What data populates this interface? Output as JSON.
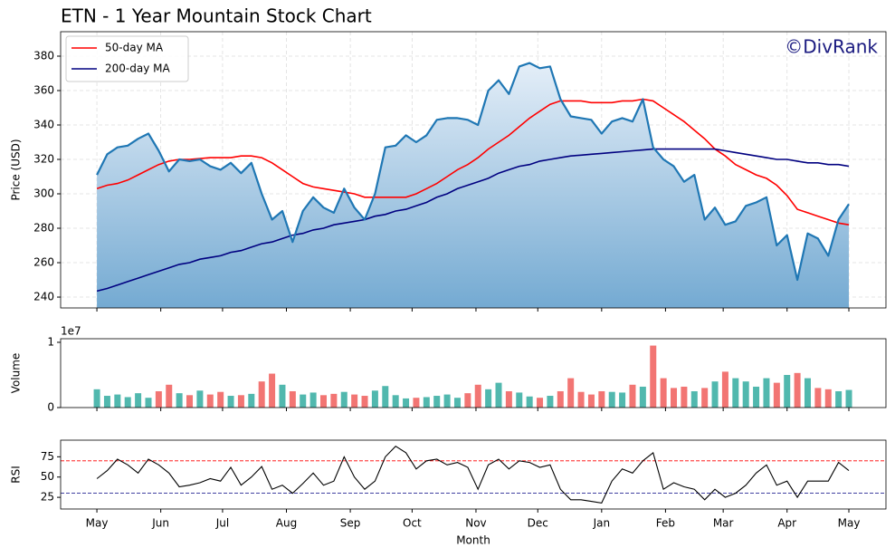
{
  "chart_data": [
    {
      "type": "area",
      "title": "ETN - 1 Year Mountain Stock Chart",
      "watermark": "©DivRank",
      "ylabel": "Price (USD)",
      "x": [
        0,
        5,
        10,
        15,
        20,
        25,
        30,
        35,
        40,
        45,
        50,
        55,
        60,
        65,
        70,
        75,
        80,
        85,
        90,
        95,
        100,
        105,
        110,
        115,
        120,
        125,
        130,
        135,
        140,
        145,
        150,
        155,
        160,
        165,
        170,
        175,
        180,
        185,
        190,
        195,
        200,
        205,
        210,
        215,
        220,
        225,
        230,
        235,
        240,
        245,
        250,
        255,
        260,
        265,
        270,
        275,
        280,
        285,
        290,
        295,
        300,
        305,
        310,
        315,
        320,
        325,
        330,
        335,
        340,
        345,
        350,
        355,
        360,
        365
      ],
      "values": [
        311,
        323,
        327,
        328,
        332,
        335,
        325,
        313,
        320,
        319,
        320,
        316,
        314,
        318,
        312,
        318,
        300,
        285,
        290,
        272,
        290,
        298,
        292,
        289,
        303,
        292,
        285,
        300,
        327,
        328,
        334,
        330,
        334,
        343,
        344,
        344,
        343,
        340,
        360,
        366,
        358,
        374,
        376,
        373,
        374,
        355,
        345,
        344,
        343,
        335,
        342,
        344,
        342,
        355,
        327,
        320,
        316,
        307,
        311,
        285,
        292,
        282,
        284,
        293,
        295,
        298,
        270,
        276,
        250,
        277,
        274,
        264,
        285,
        294
      ],
      "color": "#1f77b4",
      "series": [
        {
          "name": "50-day MA",
          "color": "#ff0000",
          "values": [
            303,
            305,
            306,
            308,
            311,
            314,
            317,
            319,
            320,
            320,
            320.5,
            321,
            321,
            321,
            322,
            322,
            321,
            318,
            314,
            310,
            306,
            304,
            303,
            302,
            301,
            300,
            298,
            298,
            298,
            298,
            298,
            300,
            303,
            306,
            310,
            314,
            317,
            321,
            326,
            330,
            334,
            339,
            344,
            348,
            352,
            354,
            354,
            354,
            353,
            353,
            353,
            354,
            354,
            355,
            354,
            350,
            346,
            342,
            337,
            332,
            326,
            322,
            317,
            314,
            311,
            309,
            305,
            299,
            291,
            289,
            287,
            285,
            283,
            282
          ]
        },
        {
          "name": "200-day MA",
          "color": "#000080",
          "values": [
            243.5,
            245,
            247,
            249,
            251,
            253,
            255,
            257,
            259,
            260,
            262,
            263,
            264,
            266,
            267,
            269,
            271,
            272,
            274,
            276,
            277,
            279,
            280,
            282,
            283,
            284,
            285,
            287,
            288,
            290,
            291,
            293,
            295,
            298,
            300,
            303,
            305,
            307,
            309,
            312,
            314,
            316,
            317,
            319,
            320,
            321,
            322,
            322.5,
            323,
            323.5,
            324,
            324.5,
            325,
            325.5,
            326,
            326,
            326,
            326,
            326,
            326,
            326,
            325,
            324,
            323,
            322,
            321,
            320,
            320,
            319,
            318,
            318,
            317,
            317,
            316
          ]
        }
      ],
      "xlim": [
        -17.6,
        383
      ],
      "ylim": [
        233.7,
        394.2
      ],
      "yticks": [
        240,
        260,
        280,
        300,
        320,
        340,
        360,
        380
      ],
      "grid": true,
      "legend": "upper left"
    },
    {
      "type": "bar",
      "ylabel": "Volume",
      "offset_label": "1e7",
      "x": [
        0,
        5,
        10,
        15,
        20,
        25,
        30,
        35,
        40,
        45,
        50,
        55,
        60,
        65,
        70,
        75,
        80,
        85,
        90,
        95,
        100,
        105,
        110,
        115,
        120,
        125,
        130,
        135,
        140,
        145,
        150,
        155,
        160,
        165,
        170,
        175,
        180,
        185,
        190,
        195,
        200,
        205,
        210,
        215,
        220,
        225,
        230,
        235,
        240,
        245,
        250,
        255,
        260,
        265,
        270,
        275,
        280,
        285,
        290,
        295,
        300,
        305,
        310,
        315,
        320,
        325,
        330,
        335,
        340,
        345,
        350,
        355,
        360,
        365
      ],
      "values": [
        2800000,
        1800000,
        2000000,
        1600000,
        2200000,
        1500000,
        2500000,
        3500000,
        2200000,
        1900000,
        2600000,
        2000000,
        2400000,
        1800000,
        1900000,
        2100000,
        4000000,
        5200000,
        3500000,
        2500000,
        2000000,
        2300000,
        1900000,
        2100000,
        2400000,
        2000000,
        1800000,
        2600000,
        3300000,
        1900000,
        1400000,
        1500000,
        1600000,
        1800000,
        2000000,
        1500000,
        2200000,
        3500000,
        2800000,
        3800000,
        2500000,
        2300000,
        1700000,
        1500000,
        1800000,
        2500000,
        4500000,
        2400000,
        2000000,
        2500000,
        2400000,
        2300000,
        3500000,
        3200000,
        9500000,
        4500000,
        3000000,
        3200000,
        2500000,
        3000000,
        4000000,
        5500000,
        4500000,
        4000000,
        3200000,
        4500000,
        3800000,
        5000000,
        5300000,
        4500000,
        3000000,
        2800000,
        2500000,
        2700000
      ],
      "up_color": "#26a69a",
      "down_color": "#ef5350",
      "xlim": [
        -17.6,
        383
      ],
      "ylim": [
        0,
        10550000
      ],
      "yticks": [
        0,
        {
          "value": 10000000,
          "label": "1"
        }
      ]
    },
    {
      "type": "line",
      "ylabel": "RSI",
      "xlabel": "Month",
      "x": [
        0,
        5,
        10,
        15,
        20,
        25,
        30,
        35,
        40,
        45,
        50,
        55,
        60,
        65,
        70,
        75,
        80,
        85,
        90,
        95,
        100,
        105,
        110,
        115,
        120,
        125,
        130,
        135,
        140,
        145,
        150,
        155,
        160,
        165,
        170,
        175,
        180,
        185,
        190,
        195,
        200,
        205,
        210,
        215,
        220,
        225,
        230,
        235,
        240,
        245,
        250,
        255,
        260,
        265,
        270,
        275,
        280,
        285,
        290,
        295,
        300,
        305,
        310,
        315,
        320,
        325,
        330,
        335,
        340,
        345,
        350,
        355,
        360,
        365
      ],
      "values": [
        48,
        58,
        72,
        65,
        55,
        72,
        65,
        55,
        38,
        40,
        43,
        48,
        45,
        62,
        40,
        50,
        63,
        35,
        40,
        30,
        42,
        55,
        40,
        45,
        75,
        50,
        35,
        45,
        75,
        88,
        80,
        60,
        70,
        72,
        65,
        68,
        62,
        35,
        65,
        72,
        60,
        70,
        68,
        62,
        65,
        35,
        22,
        22,
        20,
        18,
        45,
        60,
        55,
        70,
        80,
        35,
        43,
        38,
        35,
        22,
        35,
        25,
        30,
        40,
        55,
        65,
        40,
        45,
        25,
        45,
        45,
        45,
        68,
        58
      ],
      "color": "#000000",
      "hlines": [
        {
          "value": 70,
          "color": "#ff0000"
        },
        {
          "value": 30,
          "color": "#000080"
        }
      ],
      "xlim": [
        -17.6,
        383
      ],
      "ylim": [
        10.6,
        95.5
      ],
      "yticks": [
        25,
        50,
        75
      ],
      "xticks": [
        {
          "value": 0,
          "label": "May"
        },
        {
          "value": 31,
          "label": "Jun"
        },
        {
          "value": 61,
          "label": "Jul"
        },
        {
          "value": 92,
          "label": "Aug"
        },
        {
          "value": 123,
          "label": "Sep"
        },
        {
          "value": 153,
          "label": "Oct"
        },
        {
          "value": 184,
          "label": "Nov"
        },
        {
          "value": 214,
          "label": "Dec"
        },
        {
          "value": 245,
          "label": "Jan"
        },
        {
          "value": 276,
          "label": "Feb"
        },
        {
          "value": 304,
          "label": "Mar"
        },
        {
          "value": 335,
          "label": "Apr"
        },
        {
          "value": 365,
          "label": "May"
        }
      ]
    }
  ]
}
